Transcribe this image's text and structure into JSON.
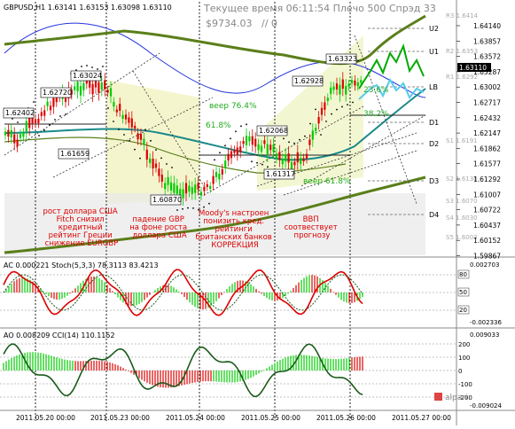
{
  "window": {
    "symbol_line": "GBPUSD,H1  1.63141 1.63153 1.63098 1.63110",
    "status_line1": "Текущее время 06:11:54 Плечо 500 Спрэд 33",
    "status_line2": "$9734.03",
    "status_line3": "// 0"
  },
  "colors": {
    "price_up": "#00cc00",
    "price_down": "#dd0000",
    "ma_dark": "#5a7f1a",
    "ma_teal": "#1a8a8a",
    "envelope_blue": "#2233dd",
    "ac_line": "#dd0000",
    "ao_line": "#1a5a1a",
    "annotation_red": "#dd0000",
    "fib_green": "#22aa22"
  },
  "price_axis": {
    "labels": [
      "1.64140",
      "1.63857",
      "1.63572",
      "1.63287",
      "1.63002",
      "1.62717",
      "1.62432",
      "1.62147",
      "1.61862",
      "1.61577",
      "1.61292",
      "1.61007",
      "1.60722",
      "1.60437",
      "1.60152",
      "1.59867"
    ],
    "current": "1.63110",
    "top_label": "1.64140"
  },
  "pivot_labels": {
    "right": [
      {
        "name": "R3",
        "value": "1.6414"
      },
      {
        "name": "R2",
        "value": "1.6353"
      },
      {
        "name": "R1",
        "value": "1.6292"
      },
      {
        "name": "S1",
        "value": "1.6191"
      },
      {
        "name": "S2",
        "value": "1.6130"
      },
      {
        "name": "S3",
        "value": "1.6070"
      },
      {
        "name": "S4",
        "value": "1.6030"
      },
      {
        "name": "S5",
        "value": "1.6003"
      }
    ],
    "levels": [
      "U2",
      "U1",
      "LB",
      "D1",
      "D2",
      "D3",
      "D4"
    ]
  },
  "price_tags": [
    "1.62402",
    "1.62720",
    "1.63024",
    "1.61659",
    "1.63323",
    "1.62928",
    "1.62068",
    "1.61317",
    "1.60870"
  ],
  "fib_labels": {
    "veer764": "веер 76.4%",
    "pct618": "61.8%",
    "pct236": "23.6%",
    "pct382": "38.2%",
    "veer618": "веер 61.8%"
  },
  "annotations": [
    {
      "id": "usd-rise",
      "lines": [
        "рост доллара США",
        "Fitch снизил",
        "кредитный",
        "рейтинг Греции",
        "снижение EURGBP"
      ]
    },
    {
      "id": "gbp-fall",
      "lines": [
        "падение GBP",
        "на фоне роста",
        "доллара США"
      ]
    },
    {
      "id": "moodys",
      "lines": [
        "Moody's настроен",
        "понизить кред.",
        "рейтинги",
        "британских банков",
        "КОРРЕКЦИЯ"
      ]
    },
    {
      "id": "gdp",
      "lines": [
        "ВВП",
        "соотвествует",
        "прогнозу"
      ]
    }
  ],
  "ac_panel": {
    "label": "AC 0.000221  Stoch(5,3,3) 78.3113 83.4213",
    "axis_top": "0.002703",
    "axis_bottom": "-0.002336",
    "levels": [
      "80",
      "50",
      "20"
    ]
  },
  "ao_panel": {
    "label": "AO 0.008209  CCI(14) 110.1152",
    "axis_top": "0.009033",
    "axis_bottom": "-0.009024",
    "levels": [
      "200",
      "100",
      "0",
      "-100",
      "-200"
    ]
  },
  "time_axis": [
    "2011.05.20 00:00",
    "2011.05.23 00:00",
    "2011.05.24 00:00",
    "2011.05.25 00:00",
    "2011.05.26 00:00",
    "2011.05.27 00:00"
  ],
  "brand": "alpari"
}
